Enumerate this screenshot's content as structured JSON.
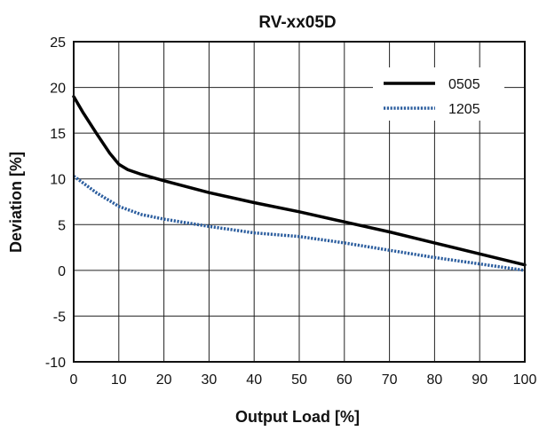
{
  "chart_data": {
    "type": "line",
    "title": "RV-xx05D",
    "xlabel": "Output Load [%]",
    "ylabel": "Deviation [%]",
    "xlim": [
      0,
      100
    ],
    "ylim": [
      -10,
      25
    ],
    "xticks": [
      "0",
      "10",
      "20",
      "30",
      "40",
      "50",
      "60",
      "70",
      "80",
      "90",
      "100"
    ],
    "yticks": [
      "25",
      "20",
      "15",
      "10",
      "5",
      "0",
      "-5",
      "-10"
    ],
    "grid": true,
    "legend_position": "top-right",
    "series": [
      {
        "name": "0505",
        "color": "#000000",
        "style": "solid",
        "x": [
          0,
          2,
          5,
          8,
          10,
          12,
          15,
          20,
          30,
          40,
          50,
          60,
          70,
          80,
          90,
          100
        ],
        "y": [
          19.0,
          17.3,
          15.0,
          12.8,
          11.6,
          11.0,
          10.5,
          9.8,
          8.5,
          7.4,
          6.4,
          5.3,
          4.2,
          3.0,
          1.8,
          0.6
        ]
      },
      {
        "name": "1205",
        "color": "#2b5d9e",
        "style": "dotted",
        "x": [
          0,
          5,
          10,
          15,
          20,
          30,
          40,
          50,
          60,
          70,
          80,
          90,
          100
        ],
        "y": [
          10.3,
          8.5,
          7.0,
          6.1,
          5.6,
          4.8,
          4.1,
          3.7,
          3.0,
          2.2,
          1.4,
          0.7,
          0.0
        ]
      }
    ]
  }
}
